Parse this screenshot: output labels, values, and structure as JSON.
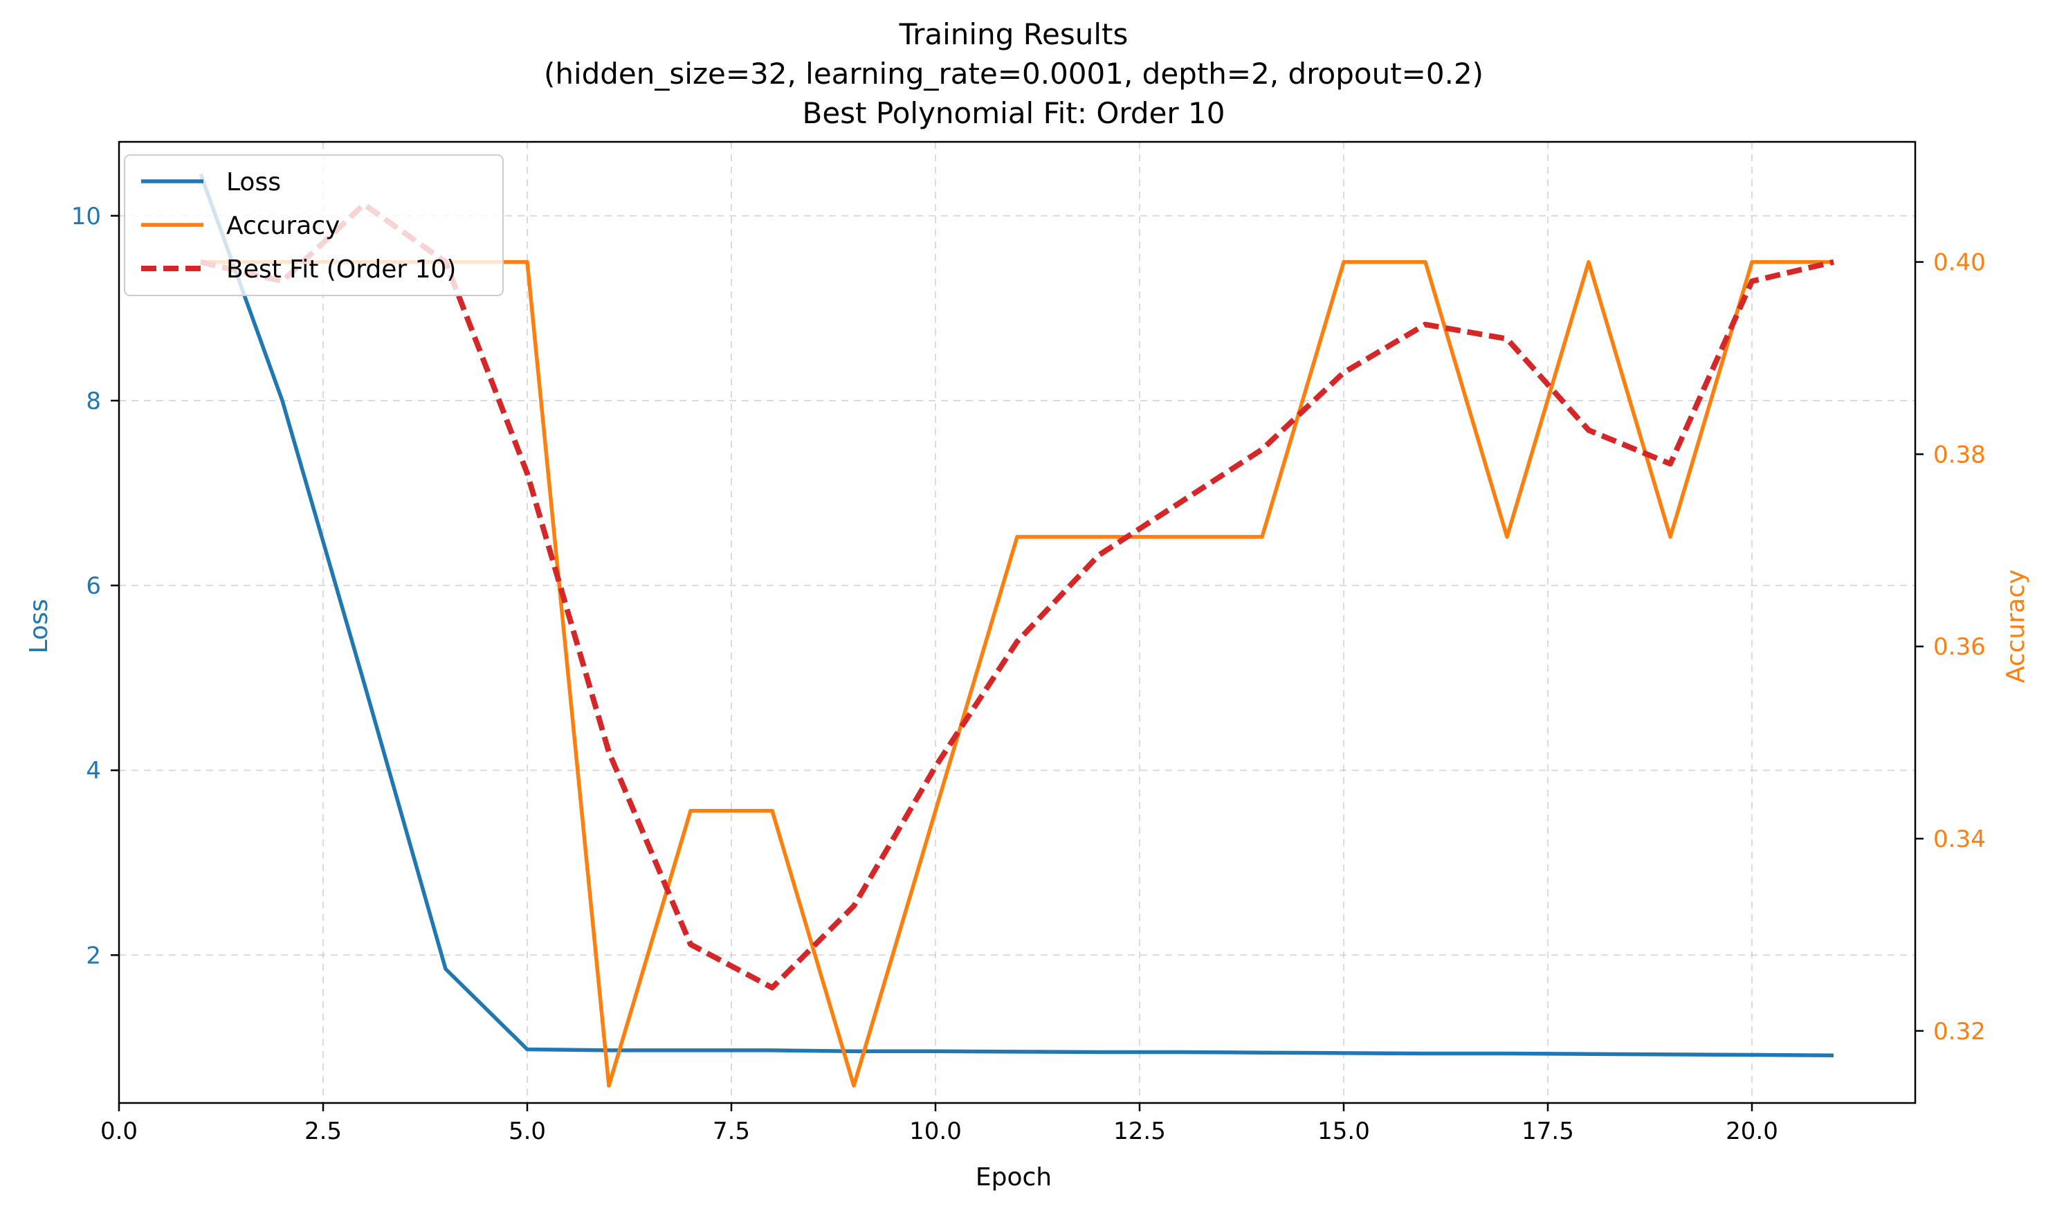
{
  "chart_data": {
    "type": "line",
    "title_lines": [
      "Training Results",
      "(hidden_size=32, learning_rate=0.0001, depth=2, dropout=0.2)",
      "Best Polynomial Fit: Order 10"
    ],
    "xlabel": "Epoch",
    "ylabel_left": "Loss",
    "ylabel_right": "Accuracy",
    "xlim": [
      0,
      22
    ],
    "ylim_left": [
      0.4,
      10.8
    ],
    "ylim_right": [
      0.3125,
      0.4125
    ],
    "x_ticks": [
      0.0,
      2.5,
      5.0,
      7.5,
      10.0,
      12.5,
      15.0,
      17.5,
      20.0
    ],
    "x_tick_labels": [
      "0.0",
      "2.5",
      "5.0",
      "7.5",
      "10.0",
      "12.5",
      "15.0",
      "17.5",
      "20.0"
    ],
    "y_left_ticks": [
      2,
      4,
      6,
      8,
      10
    ],
    "y_left_tick_labels": [
      "2",
      "4",
      "6",
      "8",
      "10"
    ],
    "y_right_ticks": [
      0.32,
      0.34,
      0.36,
      0.38,
      0.4
    ],
    "y_right_tick_labels": [
      "0.32",
      "0.34",
      "0.36",
      "0.38",
      "0.40"
    ],
    "grid": true,
    "legend_position": "top-left",
    "x": [
      1,
      2,
      3,
      4,
      5,
      6,
      7,
      8,
      9,
      10,
      11,
      12,
      13,
      14,
      15,
      16,
      17,
      18,
      19,
      20,
      21
    ],
    "series": [
      {
        "name": "Loss",
        "axis": "left",
        "color": "#1f77b4",
        "style": "solid",
        "values": [
          10.45,
          8.0,
          4.95,
          1.85,
          0.98,
          0.97,
          0.97,
          0.97,
          0.96,
          0.96,
          0.955,
          0.95,
          0.95,
          0.945,
          0.94,
          0.935,
          0.935,
          0.93,
          0.925,
          0.92,
          0.915
        ]
      },
      {
        "name": "Accuracy",
        "axis": "right",
        "color": "#ff7f0e",
        "style": "solid",
        "values": [
          0.4,
          0.4,
          0.4,
          0.4,
          0.4,
          0.3143,
          0.3429,
          0.3429,
          0.3143,
          0.3429,
          0.3714,
          0.3714,
          0.3714,
          0.3714,
          0.4,
          0.4,
          0.3714,
          0.4,
          0.3714,
          0.4,
          0.4
        ]
      },
      {
        "name": "Best Fit (Order 10)",
        "axis": "right",
        "color": "#d62728",
        "style": "dashed",
        "values": [
          0.4,
          0.398,
          0.406,
          0.4,
          0.378,
          0.349,
          0.329,
          0.3245,
          0.333,
          0.3475,
          0.3605,
          0.3695,
          0.375,
          0.3805,
          0.3885,
          0.3935,
          0.392,
          0.3825,
          0.379,
          0.398,
          0.4
        ]
      }
    ]
  }
}
